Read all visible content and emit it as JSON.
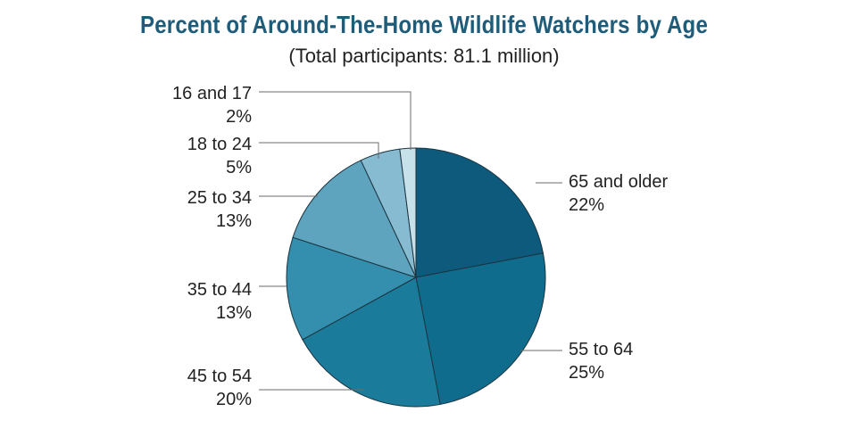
{
  "chart_data": {
    "type": "pie",
    "title": "Percent of Around-The-Home Wildlife Watchers by Age",
    "subtitle": "(Total participants: 81.1 million)",
    "slices": [
      {
        "label": "65 and older",
        "value": 22,
        "value_label": "22%",
        "color": "#0d5a7c"
      },
      {
        "label": "55 to 64",
        "value": 25,
        "value_label": "25%",
        "color": "#106c8c"
      },
      {
        "label": "45 to 54",
        "value": 20,
        "value_label": "20%",
        "color": "#1a7b9b"
      },
      {
        "label": "35 to 44",
        "value": 13,
        "value_label": "13%",
        "color": "#348ead"
      },
      {
        "label": "25 to 34",
        "value": 13,
        "value_label": "13%",
        "color": "#5ea4bf"
      },
      {
        "label": "18 to 24",
        "value": 5,
        "value_label": "5%",
        "color": "#86bbd1"
      },
      {
        "label": "16 and 17",
        "value": 2,
        "value_label": "2%",
        "color": "#c7e1ea"
      }
    ]
  }
}
